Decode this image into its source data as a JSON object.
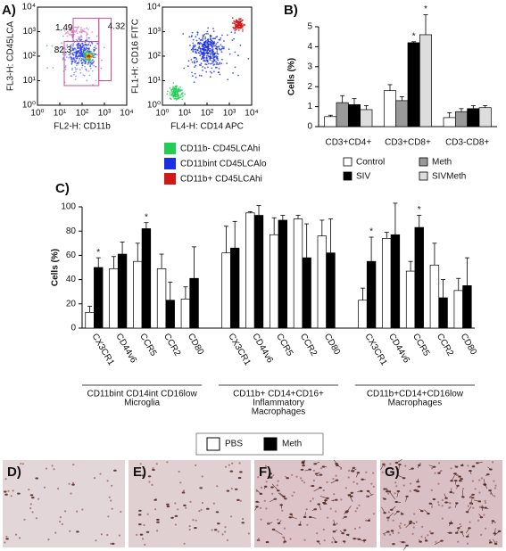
{
  "chart_data": [
    {
      "type": "flow",
      "panel": "A)",
      "xlabel": "FL2-H: CD11b",
      "ylabel": "FL3-H: CD45LCA",
      "log_scale": true,
      "xlim": [
        1,
        10000
      ],
      "ylim": [
        1,
        10000
      ],
      "xticks": [
        {
          "value": 1,
          "label": "10⁰"
        },
        {
          "value": 10,
          "label": "10¹"
        },
        {
          "value": 100,
          "label": "10²"
        },
        {
          "value": 1000,
          "label": "10³"
        },
        {
          "value": 10000,
          "label": "10⁴"
        }
      ],
      "yticks": [
        {
          "value": 1,
          "label": "10⁰"
        },
        {
          "value": 10,
          "label": "10¹"
        },
        {
          "value": 100,
          "label": "10²"
        },
        {
          "value": 1000,
          "label": "10³"
        },
        {
          "value": 10000,
          "label": "10⁴"
        }
      ],
      "gate_values": [
        1.49,
        4.32,
        82.3
      ]
    },
    {
      "type": "flow",
      "xlabel": "FL4-H: CD14 APC",
      "ylabel": "FL1-H: CD16 FITC",
      "log_scale": true,
      "xlim": [
        1,
        10000
      ],
      "ylim": [
        1,
        10000
      ],
      "xticks": [
        {
          "value": 1,
          "label": "10⁰"
        },
        {
          "value": 10,
          "label": "10¹"
        },
        {
          "value": 100,
          "label": "10²"
        },
        {
          "value": 1000,
          "label": "10³"
        },
        {
          "value": 10000,
          "label": "10⁴"
        }
      ],
      "yticks": [
        {
          "value": 1,
          "label": "10⁰"
        },
        {
          "value": 10,
          "label": "10¹"
        },
        {
          "value": 100,
          "label": "10²"
        },
        {
          "value": 1000,
          "label": "10³"
        },
        {
          "value": 10000,
          "label": "10⁴"
        }
      ],
      "series": [
        {
          "name": "CD11b- CD45LCAhi",
          "color": "#22cc55"
        },
        {
          "name": "CD11bint CD45LCAlo",
          "color": "#1a2fe0"
        },
        {
          "name": "CD11b+ CD45LCAhi",
          "color": "#d01818"
        }
      ]
    },
    {
      "type": "bar",
      "panel": "B)",
      "ylabel": "Cells (%)",
      "categories": [
        "CD3+CD4+",
        "CD3+CD8+",
        "CD3-CD8+"
      ],
      "ylim": [
        0,
        5
      ],
      "yticks": [
        0,
        1,
        2,
        3,
        4,
        5
      ],
      "series": [
        {
          "name": "Control",
          "color": "#ffffff",
          "values": [
            0.5,
            1.8,
            0.45
          ],
          "errors": [
            0.07,
            0.3,
            0.25
          ]
        },
        {
          "name": "Meth",
          "color": "#999999",
          "values": [
            1.2,
            1.3,
            0.75
          ],
          "errors": [
            0.35,
            0.2,
            0.15
          ]
        },
        {
          "name": "SIV",
          "color": "#000000",
          "values": [
            1.1,
            4.2,
            0.9
          ],
          "errors": [
            0.3,
            0.05,
            0.15
          ],
          "significance": [
            null,
            "*",
            null
          ]
        },
        {
          "name": "SIVMeth",
          "color": "#dddddd",
          "values": [
            0.85,
            4.6,
            0.95
          ],
          "errors": [
            0.2,
            1.0,
            0.1
          ],
          "significance": [
            null,
            "*",
            null
          ]
        }
      ]
    },
    {
      "type": "bar",
      "panel": "C)",
      "ylabel": "Cells (%)",
      "categories": [
        "CX3CR1",
        "CD44v6",
        "CCR5",
        "CCR2",
        "CD80",
        "CX3CR1",
        "CD44v6",
        "CCR5",
        "CCR2",
        "CD80",
        "CX3CR1",
        "CD44v6",
        "CCR5",
        "CCR2",
        "CD80"
      ],
      "group_labels": [
        [
          "CD11bint CD14int CD16low",
          "Microglia"
        ],
        [
          "CD11b+ CD14+CD16+",
          "Inflammatory",
          "Macrophages"
        ],
        [
          "CD11b+CD14+CD16low",
          "Macrophages"
        ]
      ],
      "ylim": [
        0,
        100
      ],
      "yticks": [
        0,
        20,
        40,
        60,
        80,
        100
      ],
      "series": [
        {
          "name": "PBS",
          "color": "#ffffff",
          "values": [
            13,
            49,
            55,
            49,
            24,
            62,
            95,
            77,
            90,
            76,
            23,
            74,
            47,
            52,
            31
          ],
          "errors": [
            5,
            10,
            15,
            12,
            10,
            22,
            1,
            14,
            3,
            13,
            10,
            5,
            8,
            18,
            10
          ]
        },
        {
          "name": "Meth",
          "color": "#000000",
          "values": [
            50,
            61,
            82,
            23,
            41,
            66,
            93,
            89,
            58,
            62,
            55,
            77,
            83,
            25,
            35
          ],
          "errors": [
            8,
            10,
            5,
            15,
            26,
            22,
            8,
            4,
            28,
            28,
            20,
            26,
            10,
            15,
            23
          ],
          "significance": [
            "*",
            null,
            "*",
            null,
            null,
            null,
            null,
            null,
            null,
            null,
            "*",
            null,
            "*",
            null,
            null
          ]
        }
      ]
    }
  ],
  "micrographs": {
    "labels": [
      "D)",
      "E)",
      "F)",
      "G)"
    ]
  }
}
